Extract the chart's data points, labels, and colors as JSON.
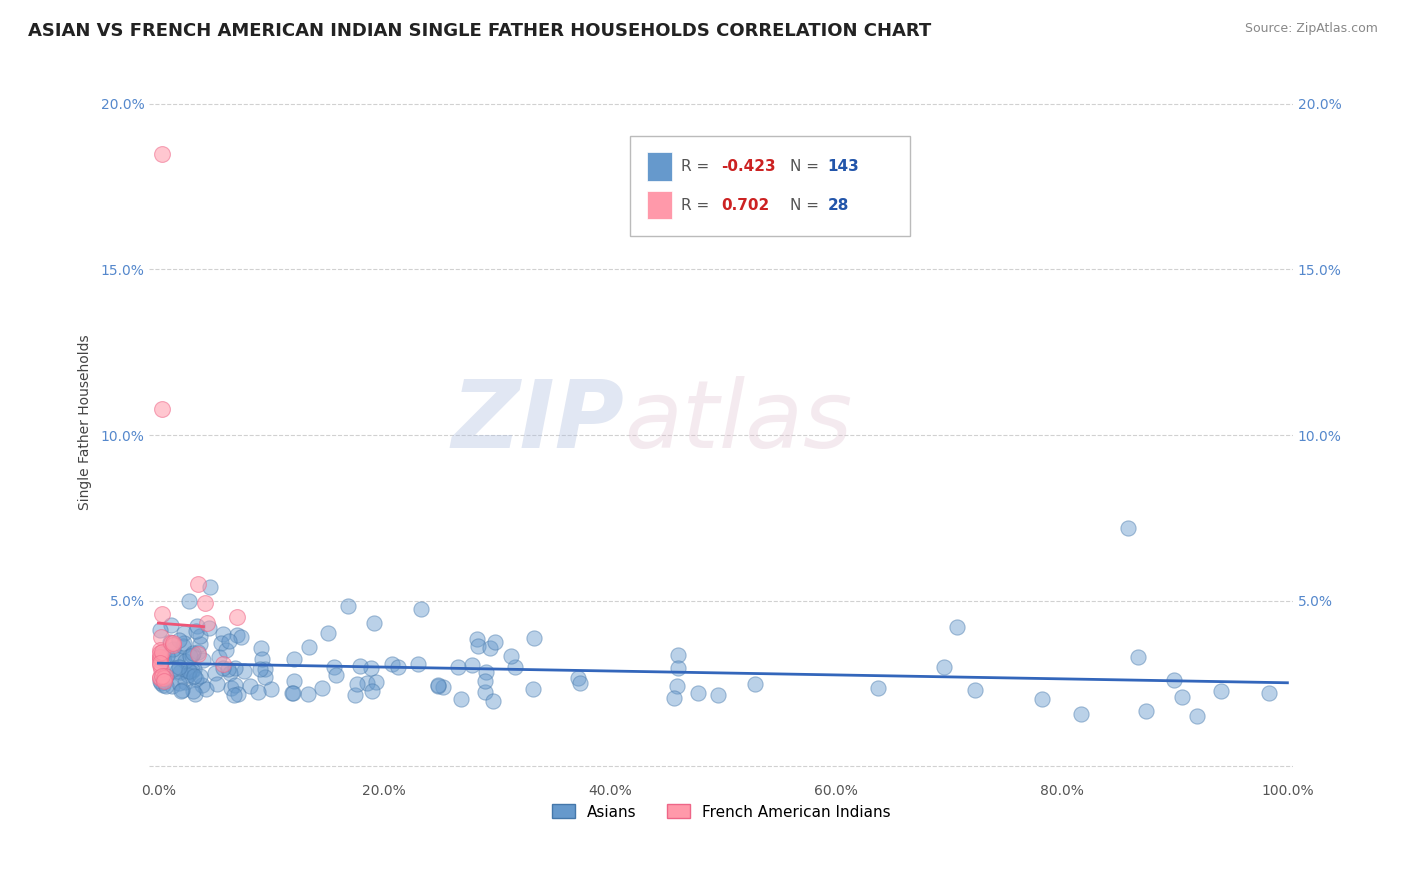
{
  "title": "ASIAN VS FRENCH AMERICAN INDIAN SINGLE FATHER HOUSEHOLDS CORRELATION CHART",
  "source": "Source: ZipAtlas.com",
  "ylabel": "Single Father Households",
  "legend_R_asian": "-0.423",
  "legend_N_asian": "143",
  "legend_R_french": "0.702",
  "legend_N_french": "28",
  "color_asian": "#6699CC",
  "color_asian_edge": "#4477AA",
  "color_french": "#FF99AA",
  "color_french_edge": "#EE6688",
  "color_asian_line": "#3366BB",
  "color_french_line": "#EE5577",
  "title_fontsize": 13,
  "tick_fontsize": 10,
  "background_color": "#FFFFFF",
  "grid_color": "#CCCCCC"
}
